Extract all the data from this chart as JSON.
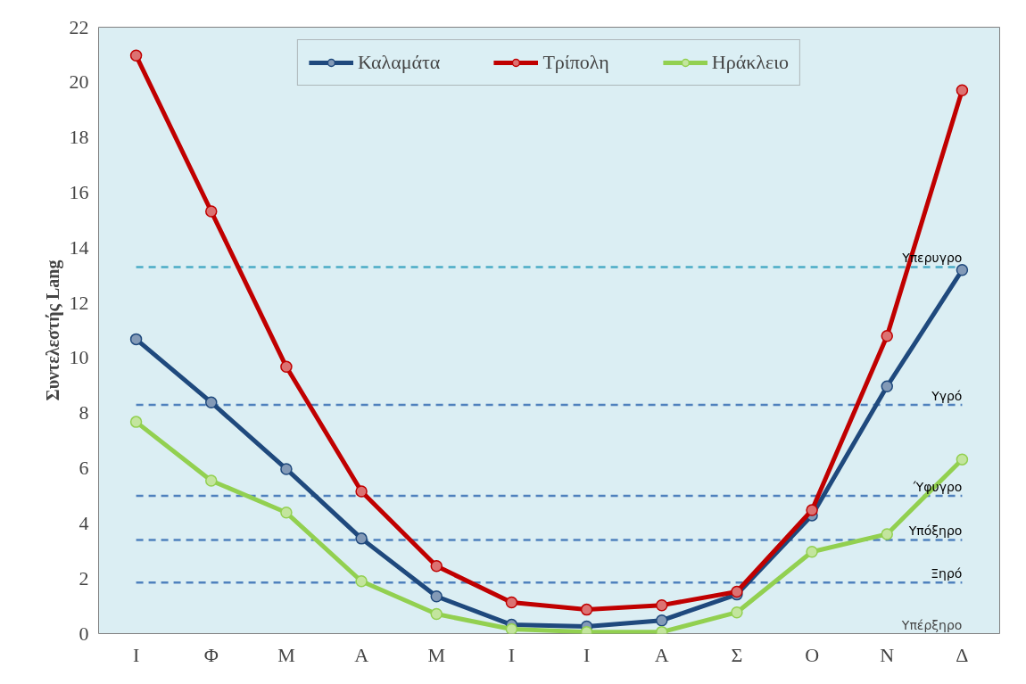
{
  "chart_data": {
    "type": "line",
    "ylabel": "Συντελεστής Lang",
    "categories": [
      "Ι",
      "Φ",
      "Μ",
      "Α",
      "Μ",
      "Ι",
      "Ι",
      "Α",
      "Σ",
      "Ο",
      "Ν",
      "Δ"
    ],
    "series": [
      {
        "name": "Καλαμάτα",
        "color": "#1f497d",
        "values": [
          10.68,
          8.39,
          5.97,
          3.45,
          1.35,
          0.32,
          0.26,
          0.48,
          1.42,
          4.29,
          8.97,
          13.19
        ]
      },
      {
        "name": "Τρίπολη",
        "color": "#c00000",
        "values": [
          20.97,
          15.32,
          9.68,
          5.16,
          2.45,
          1.13,
          0.87,
          1.03,
          1.52,
          4.48,
          10.8,
          19.71
        ]
      },
      {
        "name": "Ηράκλειο",
        "color": "#92d050",
        "values": [
          7.68,
          5.55,
          4.39,
          1.9,
          0.71,
          0.16,
          0.06,
          0.06,
          0.77,
          2.97,
          3.61,
          6.32
        ]
      }
    ],
    "ylim": [
      0,
      22
    ],
    "yticks": [
      0,
      2,
      4,
      6,
      8,
      10,
      12,
      14,
      16,
      18,
      20,
      22
    ],
    "ref_lines": [
      {
        "axis": "y",
        "value": 13.3,
        "label": "Υπερυγρο",
        "color": "#4bacc6",
        "line_style": "dashed"
      },
      {
        "axis": "y",
        "value": 8.3,
        "label": "Υγρό",
        "color": "#4f81bd",
        "line_style": "dashed"
      },
      {
        "axis": "y",
        "value": 5.0,
        "label": "Ύφυγρο",
        "color": "#4f81bd",
        "line_style": "dashed"
      },
      {
        "axis": "y",
        "value": 3.4,
        "label": "Υπόξηρο",
        "color": "#4f81bd",
        "line_style": "dashed"
      },
      {
        "axis": "y",
        "value": 1.85,
        "label": "Ξηρό",
        "color": "#4f81bd",
        "line_style": "dashed"
      }
    ],
    "annotations": [
      "Υπέρξηρο"
    ],
    "grid": false,
    "legend": "top",
    "marker": "circle",
    "line_style": "solid"
  }
}
